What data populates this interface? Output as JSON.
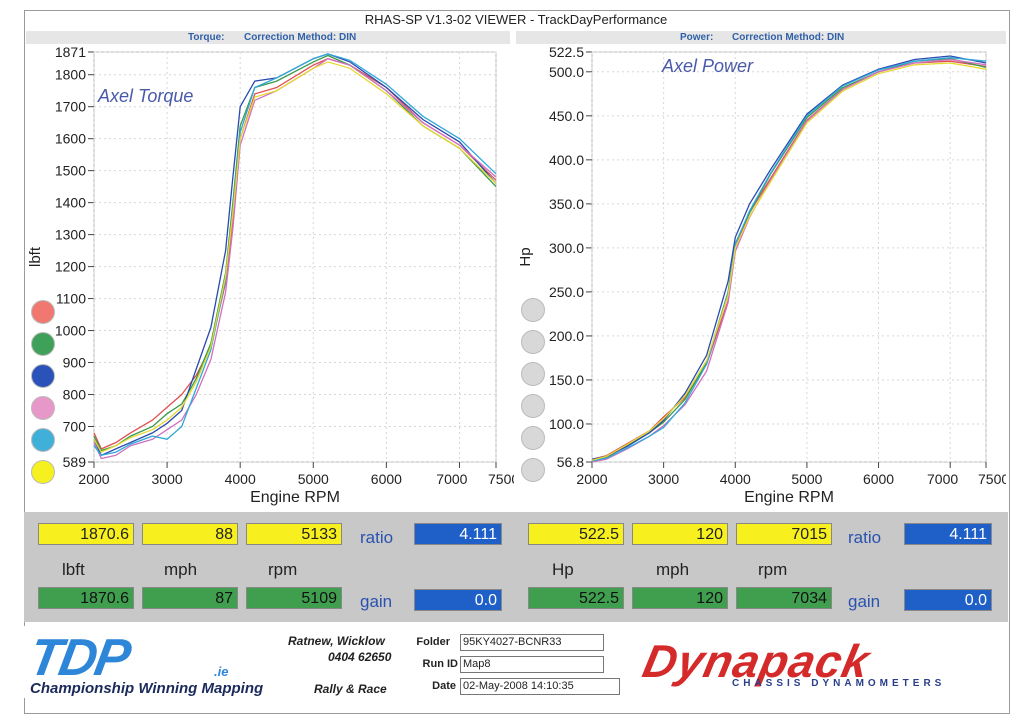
{
  "window": {
    "title": "RHAS-SP V1.3-02 VIEWER - TrackDayPerformance"
  },
  "headers": {
    "left": {
      "label": "Torque:",
      "method": "Correction Method: DIN"
    },
    "right": {
      "label": "Power:",
      "method": "Correction Method: DIN"
    }
  },
  "chart_data": [
    {
      "type": "line",
      "title": "",
      "annotation": "Axel Torque",
      "xlabel": "Engine RPM",
      "ylabel": "lbft",
      "xlim": [
        2000,
        7500
      ],
      "ylim": [
        589,
        1871
      ],
      "x_ticks": [
        "2000",
        "3000",
        "4000",
        "5000",
        "6000",
        "7000",
        "7500"
      ],
      "y_ticks": [
        "589",
        "700",
        "800",
        "900",
        "1000",
        "1100",
        "1200",
        "1300",
        "1400",
        "1500",
        "1600",
        "1700",
        "1800",
        "1871"
      ],
      "grid": true,
      "series": [
        {
          "color": "#e05050",
          "x": [
            2000,
            2100,
            2300,
            2500,
            2800,
            3000,
            3200,
            3400,
            3600,
            3800,
            3900,
            4000,
            4200,
            4500,
            5000,
            5200,
            5500,
            6000,
            6500,
            7000,
            7500
          ],
          "y": [
            680,
            630,
            650,
            680,
            720,
            760,
            800,
            860,
            950,
            1150,
            1350,
            1600,
            1740,
            1760,
            1830,
            1850,
            1830,
            1760,
            1650,
            1580,
            1470
          ]
        },
        {
          "color": "#3a9a4a",
          "x": [
            2000,
            2100,
            2300,
            2500,
            2800,
            3000,
            3200,
            3400,
            3600,
            3800,
            3900,
            4000,
            4200,
            4500,
            5000,
            5200,
            5500,
            6000,
            6500,
            7000,
            7500
          ],
          "y": [
            670,
            625,
            640,
            670,
            700,
            740,
            770,
            850,
            960,
            1180,
            1400,
            1640,
            1760,
            1780,
            1840,
            1860,
            1830,
            1750,
            1640,
            1570,
            1450
          ]
        },
        {
          "color": "#2a4ab0",
          "x": [
            2000,
            2100,
            2300,
            2500,
            2800,
            3000,
            3200,
            3400,
            3600,
            3800,
            3900,
            4000,
            4200,
            4500,
            5000,
            5200,
            5500,
            6000,
            6500,
            7000,
            7500
          ],
          "y": [
            660,
            610,
            630,
            650,
            680,
            710,
            750,
            880,
            1010,
            1250,
            1480,
            1700,
            1780,
            1790,
            1850,
            1865,
            1840,
            1760,
            1660,
            1590,
            1460
          ]
        },
        {
          "color": "#d070c0",
          "x": [
            2000,
            2100,
            2300,
            2500,
            2800,
            3000,
            3200,
            3400,
            3600,
            3800,
            3900,
            4000,
            4200,
            4500,
            5000,
            5200,
            5500,
            6000,
            6500,
            7000,
            7500
          ],
          "y": [
            650,
            600,
            610,
            640,
            660,
            690,
            720,
            800,
            910,
            1120,
            1320,
            1580,
            1720,
            1750,
            1820,
            1850,
            1830,
            1750,
            1650,
            1580,
            1480
          ]
        },
        {
          "color": "#30a8d8",
          "x": [
            2000,
            2100,
            2300,
            2500,
            2800,
            3000,
            3200,
            3400,
            3600,
            3800,
            3900,
            4000,
            4200,
            4500,
            5000,
            5200,
            5500,
            6000,
            6500,
            7000,
            7500
          ],
          "y": [
            640,
            610,
            620,
            645,
            670,
            660,
            700,
            820,
            940,
            1160,
            1380,
            1620,
            1760,
            1790,
            1850,
            1865,
            1845,
            1770,
            1670,
            1600,
            1490
          ]
        },
        {
          "color": "#e6d830",
          "x": [
            2000,
            2100,
            2300,
            2500,
            2800,
            3000,
            3200,
            3400,
            3600,
            3800,
            3900,
            4000,
            4200,
            4500,
            5000,
            5200,
            5500,
            6000,
            6500,
            7000,
            7500
          ],
          "y": [
            660,
            620,
            640,
            665,
            690,
            720,
            760,
            840,
            950,
            1170,
            1370,
            1600,
            1730,
            1750,
            1820,
            1840,
            1820,
            1740,
            1640,
            1570,
            1460
          ]
        }
      ]
    },
    {
      "type": "line",
      "title": "",
      "annotation": "Axel Power",
      "xlabel": "Engine RPM",
      "ylabel": "Hp",
      "xlim": [
        2000,
        7500
      ],
      "ylim": [
        56.8,
        522.5
      ],
      "x_ticks": [
        "2000",
        "3000",
        "4000",
        "5000",
        "6000",
        "7000",
        "7500"
      ],
      "y_ticks": [
        "56.8",
        "100.0",
        "150.0",
        "200.0",
        "250.0",
        "300.0",
        "350.0",
        "400.0",
        "450.0",
        "500.0",
        "522.5"
      ],
      "grid": true,
      "series": [
        {
          "color": "#e05050",
          "x": [
            2000,
            2200,
            2500,
            2800,
            3000,
            3300,
            3600,
            3900,
            4000,
            4200,
            4500,
            5000,
            5500,
            6000,
            6500,
            7000,
            7500
          ],
          "y": [
            60,
            64,
            78,
            92,
            108,
            130,
            168,
            240,
            300,
            340,
            380,
            445,
            480,
            500,
            510,
            512,
            506
          ]
        },
        {
          "color": "#3a9a4a",
          "x": [
            2000,
            2200,
            2500,
            2800,
            3000,
            3300,
            3600,
            3900,
            4000,
            4200,
            4500,
            5000,
            5500,
            6000,
            6500,
            7000,
            7500
          ],
          "y": [
            58,
            62,
            76,
            90,
            102,
            128,
            170,
            250,
            305,
            340,
            385,
            448,
            482,
            500,
            512,
            515,
            505
          ]
        },
        {
          "color": "#2a4ab0",
          "x": [
            2000,
            2200,
            2500,
            2800,
            3000,
            3300,
            3600,
            3900,
            4000,
            4200,
            4500,
            5000,
            5500,
            6000,
            6500,
            7000,
            7500
          ],
          "y": [
            60,
            63,
            75,
            90,
            104,
            135,
            178,
            262,
            312,
            350,
            390,
            452,
            485,
            503,
            514,
            518,
            510
          ]
        },
        {
          "color": "#d070c0",
          "x": [
            2000,
            2200,
            2500,
            2800,
            3000,
            3300,
            3600,
            3900,
            4000,
            4200,
            4500,
            5000,
            5500,
            6000,
            6500,
            7000,
            7500
          ],
          "y": [
            57,
            60,
            72,
            86,
            98,
            122,
            160,
            238,
            296,
            335,
            378,
            444,
            480,
            500,
            510,
            514,
            508
          ]
        },
        {
          "color": "#30a8d8",
          "x": [
            2000,
            2200,
            2500,
            2800,
            3000,
            3300,
            3600,
            3900,
            4000,
            4200,
            4500,
            5000,
            5500,
            6000,
            6500,
            7000,
            7500
          ],
          "y": [
            58,
            61,
            73,
            86,
            96,
            124,
            168,
            248,
            304,
            342,
            386,
            450,
            484,
            502,
            512,
            516,
            512
          ]
        },
        {
          "color": "#e6d830",
          "x": [
            2000,
            2200,
            2500,
            2800,
            3000,
            3300,
            3600,
            3900,
            4000,
            4200,
            4500,
            5000,
            5500,
            6000,
            6500,
            7000,
            7500
          ],
          "y": [
            59,
            63,
            77,
            92,
            106,
            132,
            172,
            246,
            300,
            336,
            376,
            442,
            478,
            498,
            508,
            510,
            503
          ]
        }
      ]
    }
  ],
  "legend_dots": [
    "#f07870",
    "#3fa05a",
    "#2a52b8",
    "#e898c8",
    "#40b0d8",
    "#f7f020"
  ],
  "readouts": {
    "left": {
      "top": [
        "1870.6",
        "88",
        "5133"
      ],
      "bottom": [
        "1870.6",
        "87",
        "5109"
      ],
      "units": [
        "lbft",
        "mph",
        "rpm"
      ],
      "ratio_label": "ratio",
      "ratio": "4.111",
      "gain_label": "gain",
      "gain": "0.0"
    },
    "right": {
      "top": [
        "522.5",
        "120",
        "7015"
      ],
      "bottom": [
        "522.5",
        "120",
        "7034"
      ],
      "units": [
        "Hp",
        "mph",
        "rpm"
      ],
      "ratio_label": "ratio",
      "ratio": "4.111",
      "gain_label": "gain",
      "gain": "0.0"
    }
  },
  "footer": {
    "logo": "TDP",
    "logo_suffix": ".ie",
    "tagline": "Championship Winning Mapping",
    "address_line1": "Ratnew, Wicklow",
    "address_line2": "0404 62650",
    "rally": "Rally & Race",
    "folder_label": "Folder",
    "folder_value": "95KY4027-BCNR33",
    "runid_label": "Run ID",
    "runid_value": "Map8",
    "date_label": "Date",
    "date_value": "02-May-2008  14:10:35",
    "brand": "Dynapack",
    "brand_sub": "CHASSIS   DYNAMOMETERS"
  }
}
